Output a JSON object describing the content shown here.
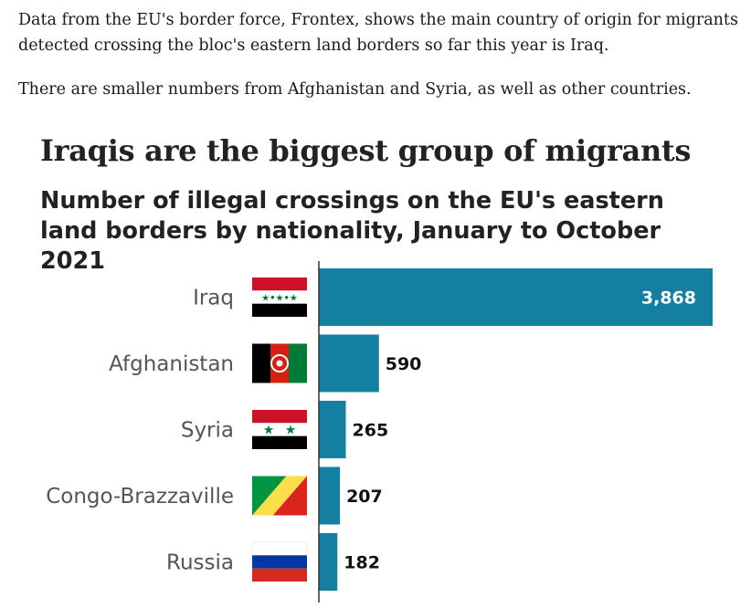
{
  "article": {
    "paragraph_1": "Data from the EU's border force, Frontex, shows the main country of origin for migrants detected crossing the bloc's eastern land borders so far this year is Iraq.",
    "paragraph_2": "There are smaller numbers from Afghanistan and Syria, as well as other countries."
  },
  "chart_data": {
    "type": "bar",
    "orientation": "horizontal",
    "title": "Iraqis are the biggest group of migrants",
    "subtitle": "Number of illegal crossings on the EU's eastern land borders by nationality, January to October 2021",
    "categories": [
      "Iraq",
      "Afghanistan",
      "Syria",
      "Congo-Brazzaville",
      "Russia"
    ],
    "values": [
      3868,
      590,
      265,
      207,
      182
    ],
    "value_labels": [
      "3,868",
      "590",
      "265",
      "207",
      "182"
    ],
    "flag_icons": [
      "iraq-flag-icon",
      "afghanistan-flag-icon",
      "syria-flag-icon",
      "congo-brazzaville-flag-icon",
      "russia-flag-icon"
    ],
    "xlim": [
      0,
      3868
    ],
    "bar_color": "#1380a1",
    "grid": false
  }
}
